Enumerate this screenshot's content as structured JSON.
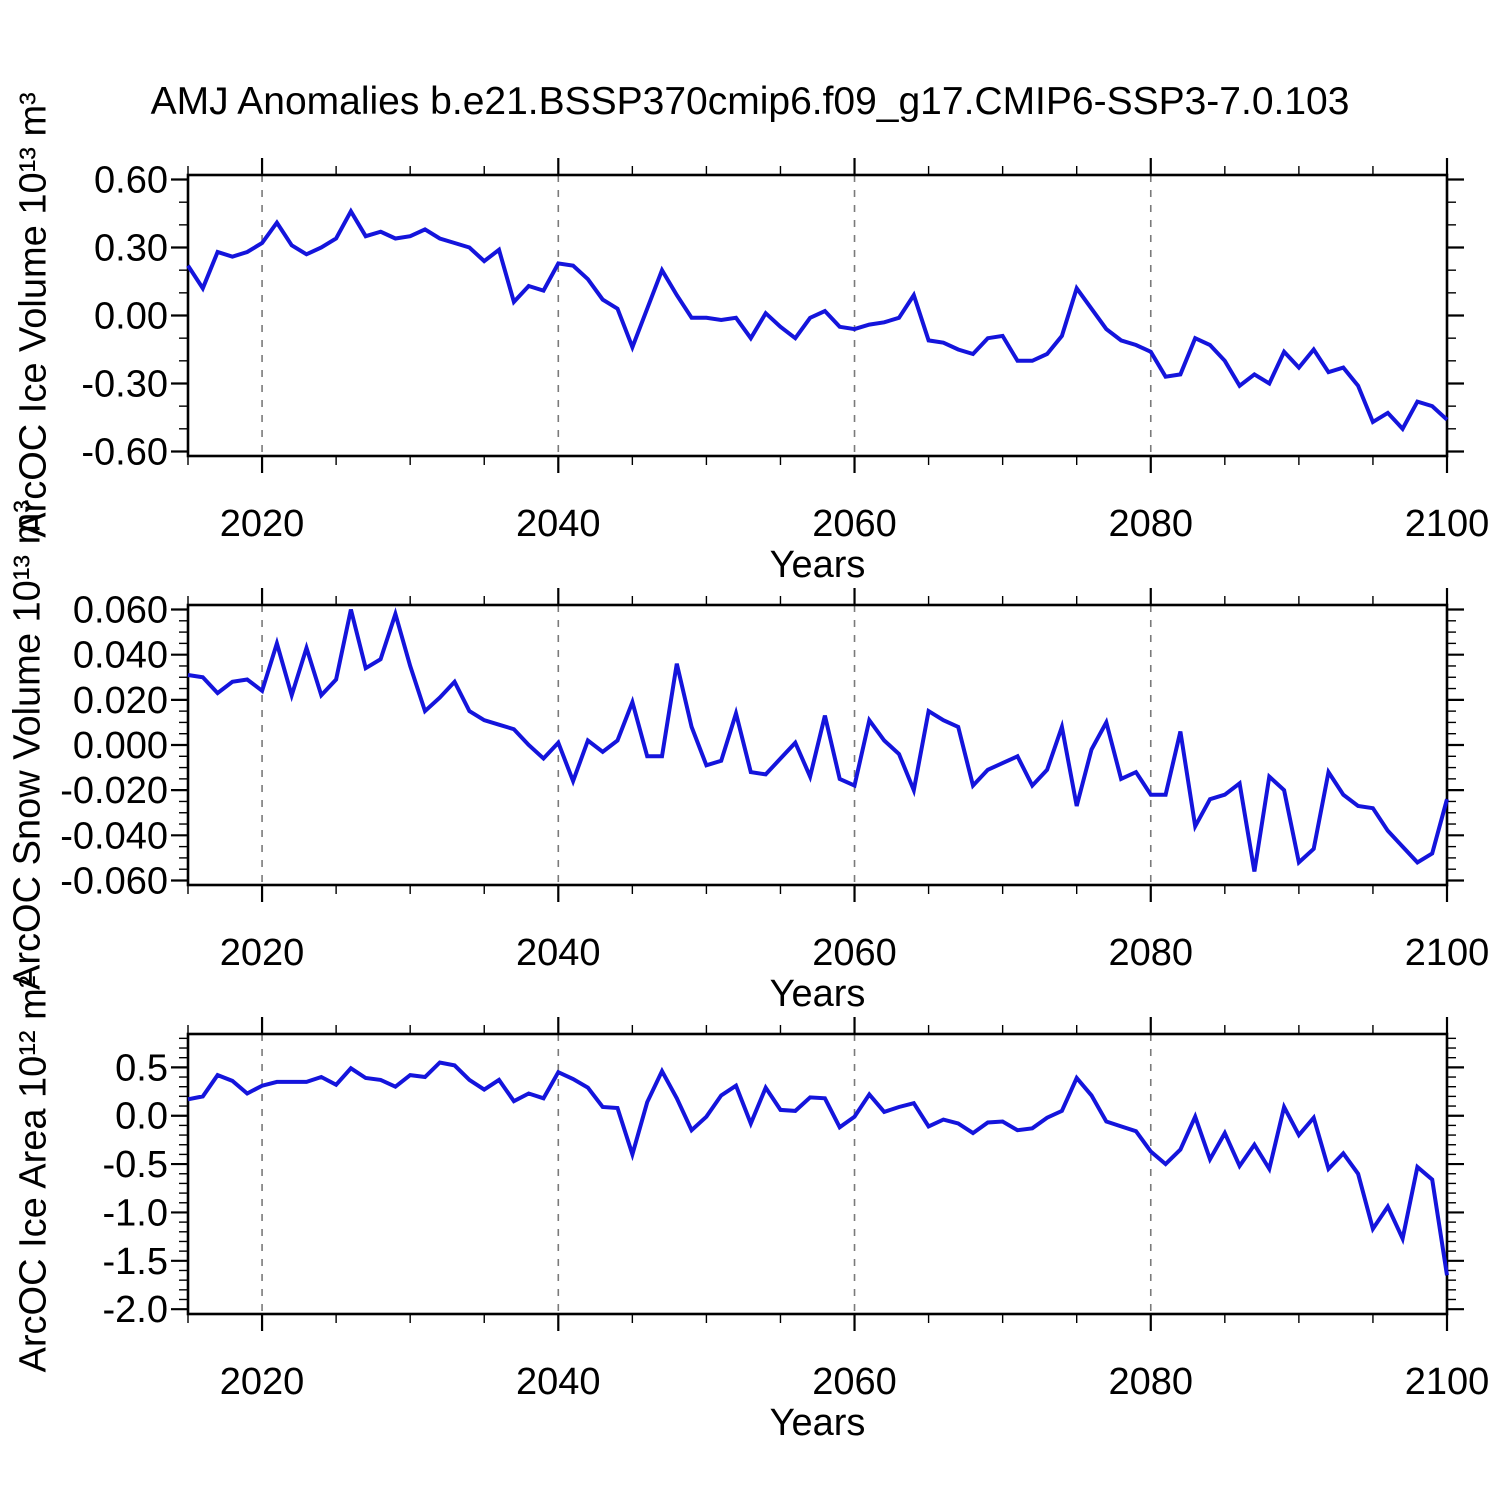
{
  "title": "AMJ Anomalies b.e21.BSSP370cmip6.f09_g17.CMIP6-SSP3-7.0.103",
  "x_axis_label": "Years",
  "colors": {
    "line": "#1414dc",
    "axis": "#000000",
    "grid": "#7a7a7a",
    "background": "#ffffff",
    "text": "#000000"
  },
  "chart_data": [
    {
      "type": "line",
      "title": "",
      "ylabel": "ArcOC Ice Volume 10¹³ m³",
      "xlabel": "Years",
      "x_start": 2015,
      "x_step": 1,
      "xlim": [
        2015,
        2100
      ],
      "ylim": [
        -0.62,
        0.62
      ],
      "x_major_ticks": [
        2020,
        2040,
        2060,
        2080,
        2100
      ],
      "x_tick_labels": [
        "2020",
        "2040",
        "2060",
        "2080",
        "2100"
      ],
      "x_minor_step": 5,
      "y_major_ticks": [
        0.6,
        0.3,
        0.0,
        -0.3,
        -0.6
      ],
      "y_tick_labels": [
        "0.60",
        "0.30",
        "0.00",
        "-0.30",
        "-0.60"
      ],
      "y_minor_step": 0.1,
      "x_gridlines": [
        2020,
        2040,
        2060,
        2080
      ],
      "grid_style": "dashed",
      "legend": "none",
      "values": [
        0.22,
        0.12,
        0.28,
        0.26,
        0.28,
        0.32,
        0.41,
        0.31,
        0.27,
        0.3,
        0.34,
        0.46,
        0.35,
        0.37,
        0.34,
        0.35,
        0.38,
        0.34,
        0.32,
        0.3,
        0.24,
        0.29,
        0.06,
        0.13,
        0.11,
        0.23,
        0.22,
        0.16,
        0.07,
        0.03,
        -0.14,
        0.03,
        0.2,
        0.09,
        -0.01,
        -0.01,
        -0.02,
        -0.01,
        -0.1,
        0.01,
        -0.05,
        -0.1,
        -0.01,
        0.02,
        -0.05,
        -0.06,
        -0.04,
        -0.03,
        -0.01,
        0.09,
        -0.11,
        -0.12,
        -0.15,
        -0.17,
        -0.1,
        -0.09,
        -0.2,
        -0.2,
        -0.17,
        -0.09,
        0.12,
        0.03,
        -0.06,
        -0.11,
        -0.13,
        -0.16,
        -0.27,
        -0.26,
        -0.1,
        -0.13,
        -0.2,
        -0.31,
        -0.26,
        -0.3,
        -0.16,
        -0.23,
        -0.15,
        -0.25,
        -0.23,
        -0.31,
        -0.47,
        -0.43,
        -0.5,
        -0.38,
        -0.4,
        -0.46
      ]
    },
    {
      "type": "line",
      "title": "",
      "ylabel": "ArcOC Snow Volume 10¹³ m³",
      "xlabel": "Years",
      "x_start": 2015,
      "x_step": 1,
      "xlim": [
        2015,
        2100
      ],
      "ylim": [
        -0.062,
        0.062
      ],
      "x_major_ticks": [
        2020,
        2040,
        2060,
        2080,
        2100
      ],
      "x_tick_labels": [
        "2020",
        "2040",
        "2060",
        "2080",
        "2100"
      ],
      "x_minor_step": 5,
      "y_major_ticks": [
        0.06,
        0.04,
        0.02,
        0.0,
        -0.02,
        -0.04,
        -0.06
      ],
      "y_tick_labels": [
        "0.060",
        "0.040",
        "0.020",
        "0.000",
        "-0.020",
        "-0.040",
        "-0.060"
      ],
      "y_minor_step": 0.005,
      "x_gridlines": [
        2020,
        2040,
        2060,
        2080
      ],
      "grid_style": "dashed",
      "legend": "none",
      "values": [
        0.031,
        0.03,
        0.023,
        0.028,
        0.029,
        0.024,
        0.045,
        0.022,
        0.043,
        0.022,
        0.029,
        0.06,
        0.034,
        0.038,
        0.058,
        0.035,
        0.015,
        0.021,
        0.028,
        0.015,
        0.011,
        0.009,
        0.007,
        0.0,
        -0.006,
        0.001,
        -0.016,
        0.002,
        -0.003,
        0.002,
        0.019,
        -0.005,
        -0.005,
        0.036,
        0.008,
        -0.009,
        -0.007,
        0.014,
        -0.012,
        -0.013,
        -0.006,
        0.001,
        -0.014,
        0.013,
        -0.015,
        -0.018,
        0.011,
        0.002,
        -0.004,
        -0.02,
        0.015,
        0.011,
        0.008,
        -0.018,
        -0.011,
        -0.008,
        -0.005,
        -0.018,
        -0.011,
        0.008,
        -0.027,
        -0.002,
        0.01,
        -0.015,
        -0.012,
        -0.022,
        -0.022,
        0.006,
        -0.036,
        -0.024,
        -0.022,
        -0.017,
        -0.056,
        -0.014,
        -0.02,
        -0.052,
        -0.046,
        -0.012,
        -0.022,
        -0.027,
        -0.028,
        -0.038,
        -0.045,
        -0.052,
        -0.048,
        -0.024
      ]
    },
    {
      "type": "line",
      "title": "",
      "ylabel": "ArcOC Ice Area 10¹² m²",
      "xlabel": "Years",
      "x_start": 2015,
      "x_step": 1,
      "xlim": [
        2015,
        2100
      ],
      "ylim": [
        -2.05,
        0.845
      ],
      "x_major_ticks": [
        2020,
        2040,
        2060,
        2080,
        2100
      ],
      "x_tick_labels": [
        "2020",
        "2040",
        "2060",
        "2080",
        "2100"
      ],
      "x_minor_step": 5,
      "y_major_ticks": [
        0.5,
        0.0,
        -0.5,
        -1.0,
        -1.5,
        -2.0
      ],
      "y_tick_labels": [
        "0.5",
        "0.0",
        "-0.5",
        "-1.0",
        "-1.5",
        "-2.0"
      ],
      "y_minor_step": 0.1,
      "x_gridlines": [
        2020,
        2040,
        2060,
        2080
      ],
      "grid_style": "dashed",
      "legend": "none",
      "values": [
        0.17,
        0.2,
        0.42,
        0.36,
        0.23,
        0.31,
        0.35,
        0.35,
        0.35,
        0.4,
        0.32,
        0.49,
        0.39,
        0.37,
        0.3,
        0.42,
        0.4,
        0.55,
        0.52,
        0.37,
        0.27,
        0.37,
        0.15,
        0.23,
        0.18,
        0.45,
        0.38,
        0.29,
        0.09,
        0.08,
        -0.4,
        0.14,
        0.46,
        0.18,
        -0.15,
        -0.01,
        0.21,
        0.31,
        -0.08,
        0.29,
        0.06,
        0.05,
        0.19,
        0.18,
        -0.12,
        -0.01,
        0.22,
        0.04,
        0.09,
        0.13,
        -0.11,
        -0.04,
        -0.08,
        -0.18,
        -0.07,
        -0.06,
        -0.15,
        -0.13,
        -0.02,
        0.05,
        0.39,
        0.21,
        -0.06,
        -0.11,
        -0.16,
        -0.37,
        -0.5,
        -0.35,
        -0.01,
        -0.45,
        -0.18,
        -0.52,
        -0.3,
        -0.55,
        0.09,
        -0.2,
        -0.02,
        -0.55,
        -0.39,
        -0.6,
        -1.17,
        -0.94,
        -1.27,
        -0.53,
        -0.66,
        -1.65
      ]
    }
  ]
}
